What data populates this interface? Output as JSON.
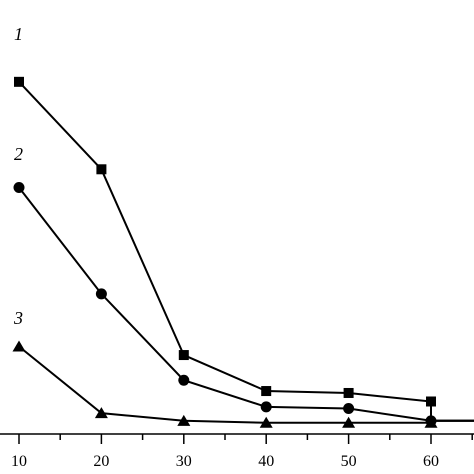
{
  "chart_data": {
    "type": "line",
    "x": [
      10,
      20,
      30,
      40,
      50,
      60
    ],
    "xlim": [
      5,
      70
    ],
    "ylim": [
      0,
      100
    ],
    "xticks": [
      10,
      20,
      30,
      40,
      50,
      60
    ],
    "xtick_labels": [
      "10",
      "20",
      "30",
      "40",
      "50",
      "60"
    ],
    "title": "",
    "xlabel": "",
    "ylabel": "",
    "grid": false,
    "series": [
      {
        "label": "1",
        "marker": "square",
        "y": [
          91,
          68.4,
          20.4,
          11.1,
          10.6,
          8.4
        ],
        "tail_y": 3.4
      },
      {
        "label": "2",
        "marker": "circle",
        "y": [
          63.7,
          36.2,
          13.9,
          7.0,
          6.6,
          3.4
        ],
        "tail_y": 3.4
      },
      {
        "label": "3",
        "marker": "triangle",
        "y": [
          22.6,
          5.4,
          3.4,
          2.9,
          2.9,
          2.9
        ],
        "tail_y": 3.4
      }
    ],
    "colors": {
      "line": "#000000",
      "marker": "#000000"
    }
  }
}
